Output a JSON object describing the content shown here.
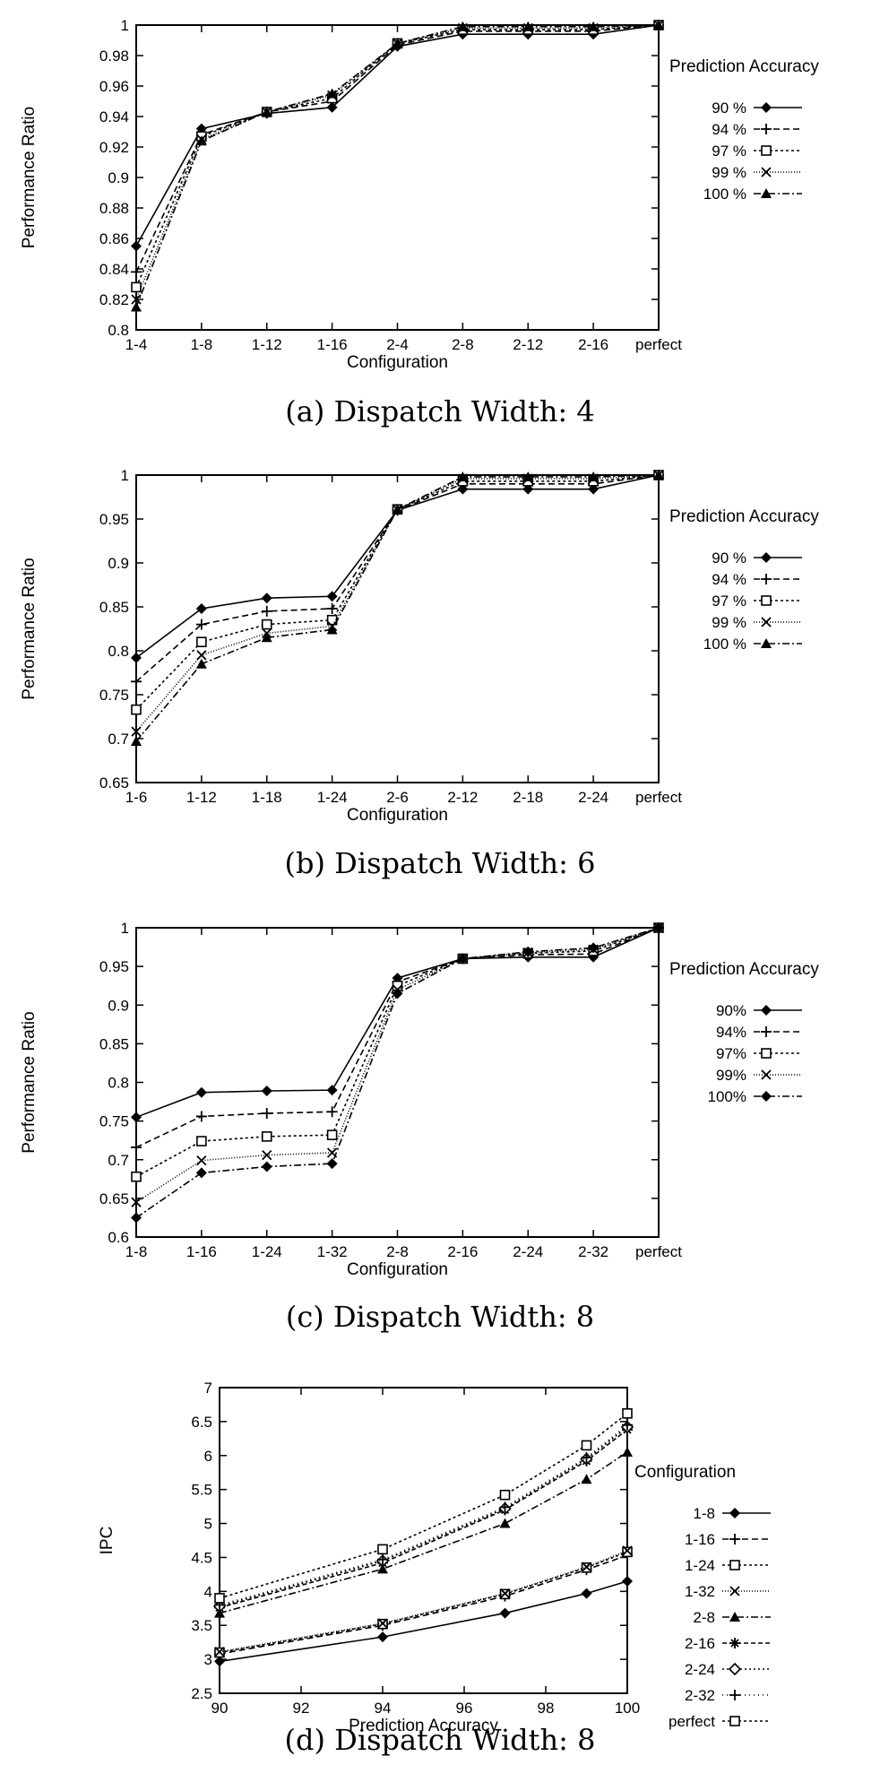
{
  "chart_data": [
    {
      "type": "line",
      "caption": "(a) Dispatch Width: 4",
      "xlabel": "Configuration",
      "ylabel": "Performance Ratio",
      "legend_title": "Prediction Accuracy",
      "legend_position": "right",
      "categories": [
        "1-4",
        "1-8",
        "1-12",
        "1-16",
        "2-4",
        "2-8",
        "2-12",
        "2-16",
        "perfect"
      ],
      "yticks": [
        "0.8",
        "0.82",
        "0.84",
        "0.86",
        "0.88",
        "0.9",
        "0.92",
        "0.94",
        "0.96",
        "0.98",
        "1"
      ],
      "ylim": [
        0.8,
        1.0
      ],
      "series": [
        {
          "name": "90 %",
          "marker": "diamond",
          "dash": "",
          "values": [
            0.855,
            0.932,
            0.942,
            0.946,
            0.986,
            0.994,
            0.994,
            0.994,
            1.0
          ]
        },
        {
          "name": "94 %",
          "marker": "plus",
          "dash": "7,4",
          "values": [
            0.838,
            0.928,
            0.943,
            0.95,
            0.987,
            0.996,
            0.996,
            0.996,
            1.0
          ]
        },
        {
          "name": "97 %",
          "marker": "square",
          "dash": "3,3",
          "values": [
            0.828,
            0.927,
            0.943,
            0.952,
            0.988,
            0.997,
            0.997,
            0.997,
            1.0
          ]
        },
        {
          "name": "99 %",
          "marker": "cross",
          "dash": "1,2",
          "values": [
            0.82,
            0.925,
            0.943,
            0.954,
            0.988,
            0.998,
            0.998,
            0.998,
            1.0
          ]
        },
        {
          "name": "100 %",
          "marker": "triangle",
          "dash": "8,3,2,3",
          "values": [
            0.815,
            0.924,
            0.943,
            0.955,
            0.988,
            0.999,
            0.999,
            0.999,
            1.0
          ]
        }
      ]
    },
    {
      "type": "line",
      "caption": "(b) Dispatch Width: 6",
      "xlabel": "Configuration",
      "ylabel": "Performance Ratio",
      "legend_title": "Prediction Accuracy",
      "legend_position": "right",
      "categories": [
        "1-6",
        "1-12",
        "1-18",
        "1-24",
        "2-6",
        "2-12",
        "2-18",
        "2-24",
        "perfect"
      ],
      "yticks": [
        "0.65",
        "0.7",
        "0.75",
        "0.8",
        "0.85",
        "0.9",
        "0.95",
        "1"
      ],
      "ylim": [
        0.65,
        1.0
      ],
      "series": [
        {
          "name": "90 %",
          "marker": "diamond",
          "dash": "",
          "values": [
            0.792,
            0.848,
            0.86,
            0.862,
            0.96,
            0.984,
            0.984,
            0.984,
            1.0
          ]
        },
        {
          "name": "94 %",
          "marker": "plus",
          "dash": "7,4",
          "values": [
            0.765,
            0.83,
            0.845,
            0.848,
            0.96,
            0.99,
            0.99,
            0.99,
            1.0
          ]
        },
        {
          "name": "97 %",
          "marker": "square",
          "dash": "3,3",
          "values": [
            0.733,
            0.81,
            0.83,
            0.835,
            0.961,
            0.993,
            0.993,
            0.993,
            1.0
          ]
        },
        {
          "name": "99 %",
          "marker": "cross",
          "dash": "1,2",
          "values": [
            0.708,
            0.795,
            0.82,
            0.828,
            0.961,
            0.996,
            0.996,
            0.996,
            1.0
          ]
        },
        {
          "name": "100 %",
          "marker": "triangle",
          "dash": "8,3,2,3",
          "values": [
            0.697,
            0.785,
            0.815,
            0.824,
            0.961,
            0.998,
            0.998,
            0.998,
            1.0
          ]
        }
      ]
    },
    {
      "type": "line",
      "caption": "(c) Dispatch Width: 8",
      "xlabel": "Configuration",
      "ylabel": "Performance Ratio",
      "legend_title": "Prediction Accuracy",
      "legend_position": "right",
      "categories": [
        "1-8",
        "1-16",
        "1-24",
        "1-32",
        "2-8",
        "2-16",
        "2-24",
        "2-32",
        "perfect"
      ],
      "yticks": [
        "0.6",
        "0.65",
        "0.7",
        "0.75",
        "0.8",
        "0.85",
        "0.9",
        "0.95",
        "1"
      ],
      "ylim": [
        0.6,
        1.0
      ],
      "series": [
        {
          "name": "90%",
          "marker": "diamond",
          "dash": "",
          "values": [
            0.755,
            0.787,
            0.789,
            0.79,
            0.935,
            0.96,
            0.962,
            0.962,
            1.0
          ]
        },
        {
          "name": "94%",
          "marker": "plus",
          "dash": "7,4",
          "values": [
            0.716,
            0.756,
            0.76,
            0.762,
            0.93,
            0.96,
            0.965,
            0.966,
            1.0
          ]
        },
        {
          "name": "97%",
          "marker": "square",
          "dash": "3,3",
          "values": [
            0.678,
            0.724,
            0.73,
            0.732,
            0.925,
            0.96,
            0.967,
            0.97,
            1.0
          ]
        },
        {
          "name": "99%",
          "marker": "cross",
          "dash": "1,2",
          "values": [
            0.645,
            0.699,
            0.706,
            0.709,
            0.92,
            0.96,
            0.968,
            0.972,
            1.0
          ]
        },
        {
          "name": "100%",
          "marker": "diamond",
          "dash": "8,3,2,3",
          "values": [
            0.625,
            0.683,
            0.691,
            0.695,
            0.915,
            0.96,
            0.969,
            0.974,
            1.0
          ]
        }
      ]
    },
    {
      "type": "line",
      "caption": "(d) Dispatch Width: 8",
      "xlabel": "Prediction Accuracy",
      "ylabel": "IPC",
      "legend_title": "Configuration",
      "legend_position": "right",
      "x": [
        90,
        94,
        97,
        99,
        100
      ],
      "xticks": [
        "90",
        "92",
        "94",
        "96",
        "98",
        "100"
      ],
      "xlim": [
        90,
        100
      ],
      "yticks": [
        "2.5",
        "3",
        "3.5",
        "4",
        "4.5",
        "5",
        "5.5",
        "6",
        "6.5",
        "7"
      ],
      "ylim": [
        2.5,
        7.0
      ],
      "series": [
        {
          "name": "1-8",
          "marker": "diamond",
          "dash": "",
          "values": [
            2.97,
            3.33,
            3.68,
            3.97,
            4.15
          ]
        },
        {
          "name": "1-16",
          "marker": "plus",
          "dash": "7,4",
          "values": [
            3.08,
            3.5,
            3.93,
            4.32,
            4.53
          ]
        },
        {
          "name": "1-24",
          "marker": "square",
          "dash": "3,3",
          "values": [
            3.1,
            3.52,
            3.96,
            4.35,
            4.58
          ]
        },
        {
          "name": "1-32",
          "marker": "cross",
          "dash": "1,2",
          "values": [
            3.11,
            3.53,
            3.97,
            4.36,
            4.6
          ]
        },
        {
          "name": "2-8",
          "marker": "triangle",
          "dash": "8,3,2,3",
          "values": [
            3.68,
            4.33,
            5.0,
            5.65,
            6.05
          ]
        },
        {
          "name": "2-16",
          "marker": "star",
          "dash": "5,3",
          "values": [
            3.76,
            4.42,
            5.2,
            5.92,
            6.38
          ]
        },
        {
          "name": "2-24",
          "marker": "diamond-open",
          "dash": "2,3",
          "values": [
            3.78,
            4.45,
            5.22,
            5.95,
            6.42
          ]
        },
        {
          "name": "2-32",
          "marker": "plus",
          "dash": "1,4",
          "values": [
            3.8,
            4.47,
            5.24,
            5.97,
            6.45
          ]
        },
        {
          "name": "perfect",
          "marker": "square",
          "dash": "3,3",
          "values": [
            3.9,
            4.62,
            5.42,
            6.15,
            6.62
          ]
        }
      ]
    }
  ]
}
